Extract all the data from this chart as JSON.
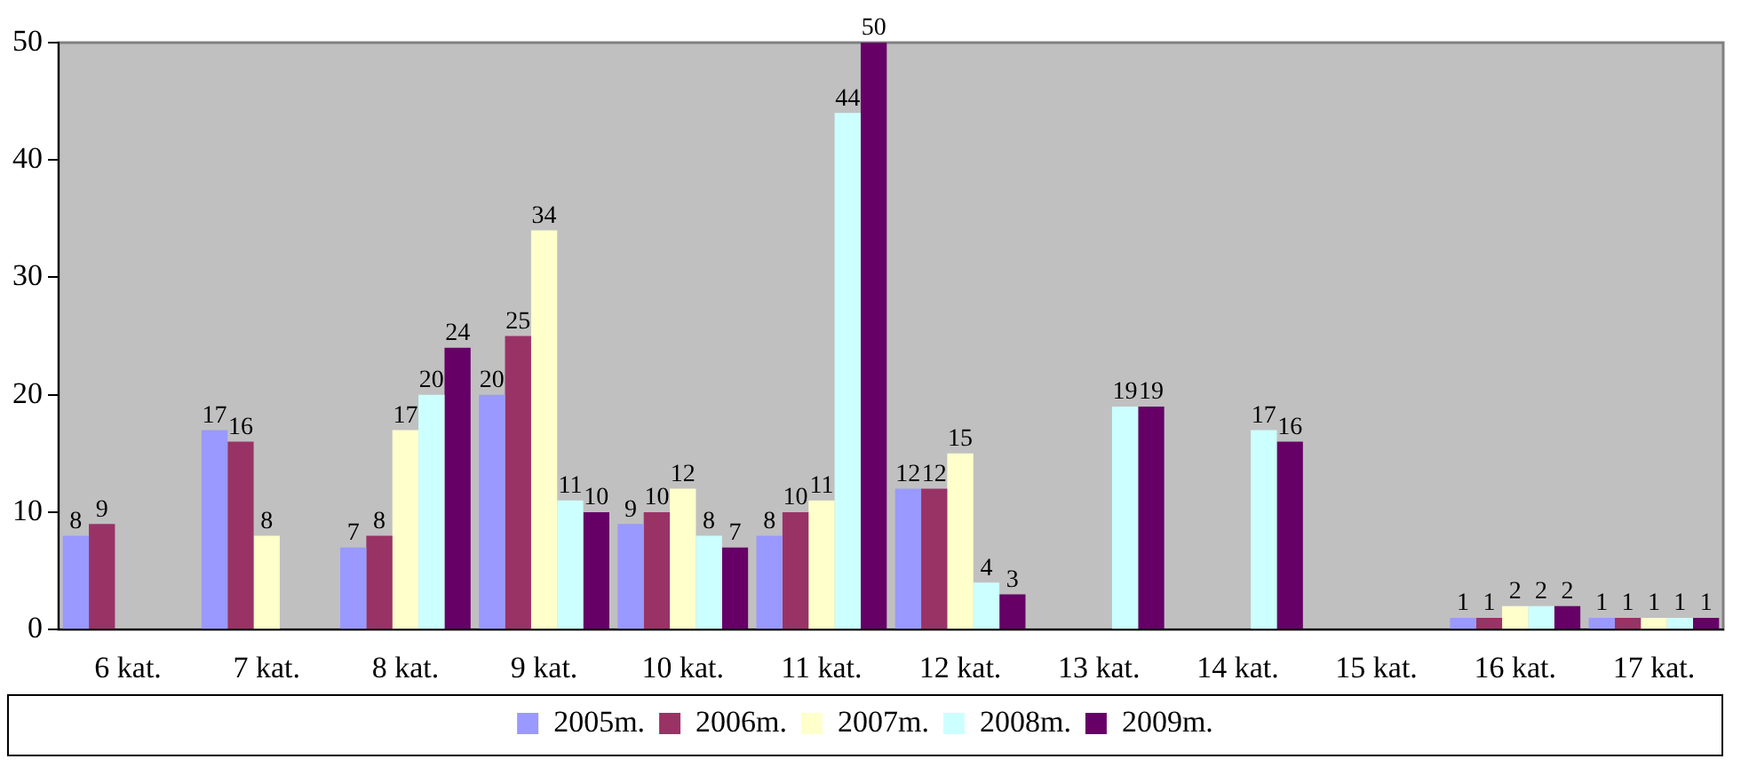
{
  "chart_data": {
    "type": "bar",
    "categories": [
      "6 kat.",
      "7 kat.",
      "8 kat.",
      "9 kat.",
      "10 kat.",
      "11 kat.",
      "12 kat.",
      "13 kat.",
      "14 kat.",
      "15 kat.",
      "16 kat.",
      "17 kat."
    ],
    "series": [
      {
        "name": "2005m.",
        "color": "#9999ff",
        "values": [
          8,
          17,
          7,
          20,
          9,
          8,
          12,
          0,
          0,
          0,
          1,
          1
        ],
        "value_labels": [
          "8",
          "17",
          "7",
          "20",
          "9",
          "8",
          "12",
          null,
          null,
          null,
          "1",
          "1"
        ]
      },
      {
        "name": "2006m.",
        "color": "#993366",
        "values": [
          9,
          16,
          8,
          25,
          10,
          10,
          12,
          0,
          0,
          0,
          1,
          1
        ],
        "value_labels": [
          "9",
          "16",
          "8",
          "25",
          "10",
          "10",
          "12",
          null,
          null,
          null,
          "1",
          "1"
        ]
      },
      {
        "name": "2007m.",
        "color": "#ffffcc",
        "values": [
          0,
          8,
          17,
          34,
          12,
          11,
          15,
          0,
          0,
          0,
          2,
          1
        ],
        "value_labels": [
          null,
          "8",
          "17",
          "34",
          "12",
          "11",
          "15",
          null,
          null,
          null,
          "2",
          "1"
        ]
      },
      {
        "name": "2008m.",
        "color": "#ccffff",
        "values": [
          0,
          0,
          20,
          11,
          8,
          44,
          4,
          19,
          17,
          0,
          2,
          1
        ],
        "value_labels": [
          null,
          null,
          "20",
          "11",
          "8",
          "44",
          "4",
          "19",
          "17",
          null,
          "2",
          "1"
        ]
      },
      {
        "name": "2009m.",
        "color": "#660066",
        "values": [
          0,
          0,
          24,
          10,
          7,
          50,
          3,
          19,
          16,
          0,
          2,
          1
        ],
        "value_labels": [
          null,
          null,
          "24",
          "10",
          "7",
          "50",
          "3",
          "19",
          "16",
          null,
          "2",
          "1"
        ]
      }
    ],
    "ylim": [
      0,
      50
    ],
    "yticks": [
      0,
      10,
      20,
      30,
      40,
      50
    ],
    "grid": false,
    "legend": "bottom"
  }
}
